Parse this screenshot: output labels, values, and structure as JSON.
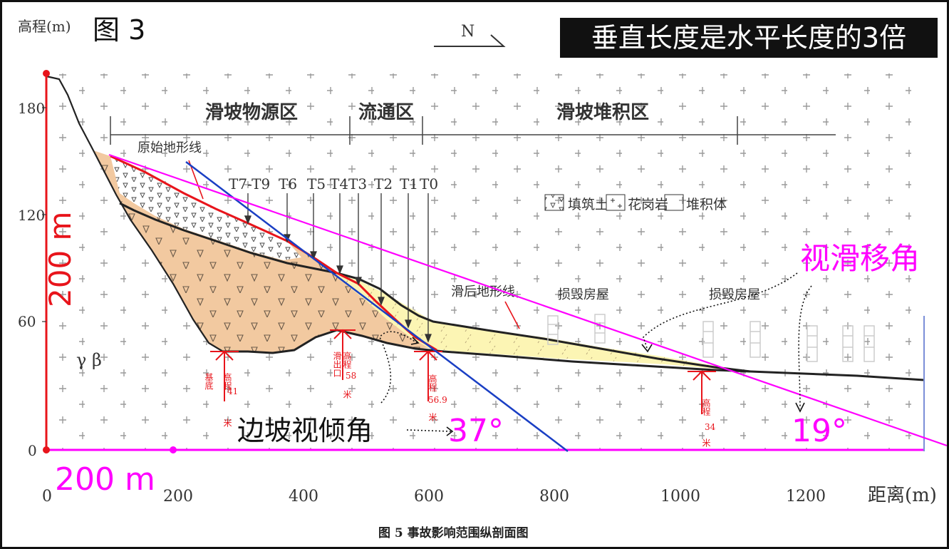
{
  "figure_label": "图 3",
  "banner": "垂直长度是水平长度的3倍",
  "y_axis_label": "高程(m)",
  "x_axis_label": "距离(m)",
  "north_label": "N",
  "y_ticks": [
    "180",
    "120",
    "60",
    "0"
  ],
  "x_ticks": [
    "0",
    "200",
    "400",
    "600",
    "800",
    "1000",
    "1200"
  ],
  "zones": [
    "滑坡物源区",
    "流通区",
    "滑坡堆积区"
  ],
  "terrace_labels": [
    "T7-T9",
    "T6",
    "T5",
    "T4",
    "T3",
    "T2",
    "T1",
    "T0"
  ],
  "legend": [
    "填筑土",
    "花岗岩",
    "堆积体"
  ],
  "labels": {
    "original_terrain": "原始地形线",
    "post_slide_terrain": "滑后地形线",
    "damaged_house_1": "损毁房屋",
    "damaged_house_2": "损毁房屋",
    "rock_code": "γ β",
    "base_elev": [
      "基底",
      "高程",
      "41",
      "米"
    ],
    "exit_elev": [
      "滑出口",
      "高程",
      "58",
      "米"
    ],
    "toe_elev": [
      "高程",
      "56.9",
      "米"
    ],
    "far_elev": [
      "高程",
      "34",
      "米"
    ]
  },
  "annotations": {
    "vertical_scale": "200 m",
    "horizontal_scale": "200 m",
    "apparent_slope_angle": "边坡视倾角",
    "angle_37": "37°",
    "apparent_slide_angle": "视滑移角",
    "angle_19": "19°"
  },
  "caption": "图 5  事故影响范围纵剖面图",
  "colors": {
    "red": "#e8141b",
    "magenta": "#ff00ff",
    "blue": "#1a3fc4",
    "deposit": "#f2c9a0",
    "yellow": "#fcf5b4"
  }
}
